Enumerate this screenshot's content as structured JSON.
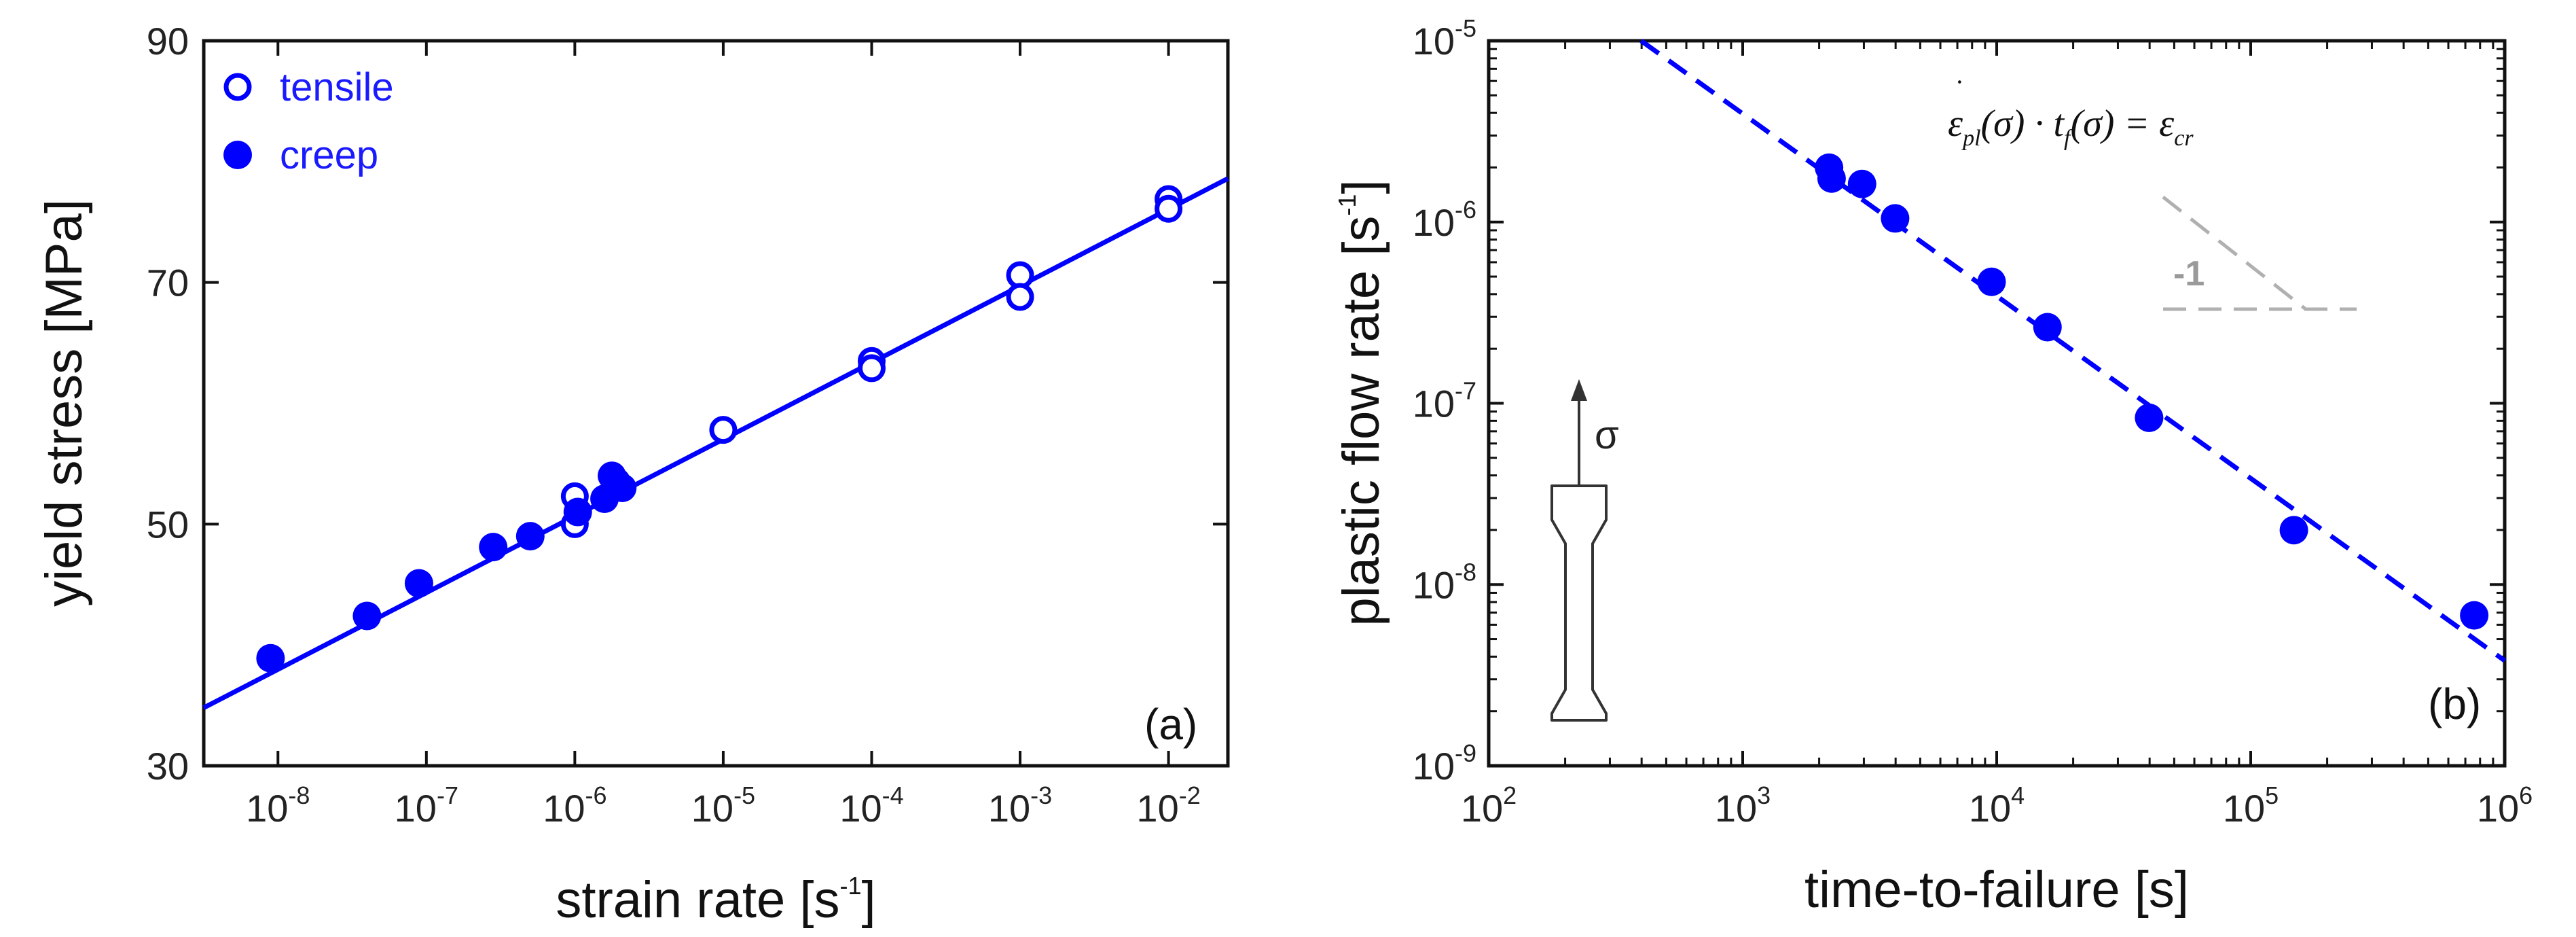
{
  "colors": {
    "series": "#0000ff",
    "axis": "#111111",
    "guide": "#b0b0b0"
  },
  "chart_data": [
    {
      "type": "scatter",
      "panel_label": "(a)",
      "xlabel_main": "strain rate [s",
      "xlabel_exp": "-1",
      "xlabel_end": "]",
      "ylabel": "yield stress [MPa]",
      "xscale": "log",
      "xlim_log10": [
        -8.5,
        -1.6
      ],
      "ylim": [
        30,
        90
      ],
      "yticks": [
        {
          "value": 30,
          "label": "30"
        },
        {
          "value": 50,
          "label": "50"
        },
        {
          "value": 70,
          "label": "70"
        },
        {
          "value": 90,
          "label": "90"
        }
      ],
      "xticks": [
        {
          "exp10": -8,
          "base": "10",
          "exp": "-8"
        },
        {
          "exp10": -7,
          "base": "10",
          "exp": "-7"
        },
        {
          "exp10": -6,
          "base": "10",
          "exp": "-6"
        },
        {
          "exp10": -5,
          "base": "10",
          "exp": "-5"
        },
        {
          "exp10": -4,
          "base": "10",
          "exp": "-4"
        },
        {
          "exp10": -3,
          "base": "10",
          "exp": "-3"
        },
        {
          "exp10": -2,
          "base": "10",
          "exp": "-2"
        }
      ],
      "legend": [
        {
          "label": "tensile",
          "marker": "open-circle"
        },
        {
          "label": "creep",
          "marker": "filled-circle"
        }
      ],
      "series": [
        {
          "name": "tensile",
          "marker": "open",
          "points": [
            {
              "log10x": -6.0,
              "y": 52.3
            },
            {
              "log10x": -6.0,
              "y": 50.0
            },
            {
              "log10x": -5.0,
              "y": 57.8
            },
            {
              "log10x": -4.0,
              "y": 63.5
            },
            {
              "log10x": -4.0,
              "y": 62.9
            },
            {
              "log10x": -3.0,
              "y": 70.6
            },
            {
              "log10x": -3.0,
              "y": 68.8
            },
            {
              "log10x": -2.0,
              "y": 76.9
            },
            {
              "log10x": -2.0,
              "y": 76.1
            }
          ]
        },
        {
          "name": "creep",
          "marker": "filled",
          "points": [
            {
              "log10x": -8.05,
              "y": 38.9
            },
            {
              "log10x": -7.4,
              "y": 42.4
            },
            {
              "log10x": -7.05,
              "y": 45.1
            },
            {
              "log10x": -6.55,
              "y": 48.1
            },
            {
              "log10x": -6.3,
              "y": 49.0
            },
            {
              "log10x": -5.98,
              "y": 51.0
            },
            {
              "log10x": -5.8,
              "y": 52.1
            },
            {
              "log10x": -5.75,
              "y": 54.0
            },
            {
              "log10x": -5.72,
              "y": 53.5
            },
            {
              "log10x": -5.68,
              "y": 53.0
            }
          ]
        }
      ],
      "fit_line": {
        "style": "solid",
        "points": [
          {
            "log10x": -8.5,
            "y": 34.8
          },
          {
            "log10x": -1.6,
            "y": 78.6
          }
        ]
      }
    },
    {
      "type": "scatter",
      "panel_label": "(b)",
      "xlabel": "time-to-failure [s]",
      "ylabel_main": "plastic flow rate [s",
      "ylabel_exp": "-1",
      "ylabel_end": "]",
      "xscale": "log",
      "yscale": "log",
      "xlim_log10": [
        2,
        6
      ],
      "ylim_log10": [
        -9,
        -5
      ],
      "xticks": [
        {
          "exp10": 2,
          "base": "10",
          "exp": "2"
        },
        {
          "exp10": 3,
          "base": "10",
          "exp": "3"
        },
        {
          "exp10": 4,
          "base": "10",
          "exp": "4"
        },
        {
          "exp10": 5,
          "base": "10",
          "exp": "5"
        },
        {
          "exp10": 6,
          "base": "10",
          "exp": "6"
        }
      ],
      "yticks": [
        {
          "exp10": -9,
          "base": "10",
          "exp": "-9"
        },
        {
          "exp10": -8,
          "base": "10",
          "exp": "-8"
        },
        {
          "exp10": -7,
          "base": "10",
          "exp": "-7"
        },
        {
          "exp10": -6,
          "base": "10",
          "exp": "-6"
        },
        {
          "exp10": -5,
          "base": "10",
          "exp": "-5"
        }
      ],
      "series": [
        {
          "name": "creep",
          "marker": "filled",
          "points": [
            {
              "log10x": 3.34,
              "log10y": -5.7
            },
            {
              "log10x": 3.35,
              "log10y": -5.76
            },
            {
              "log10x": 3.47,
              "log10y": -5.79
            },
            {
              "log10x": 3.6,
              "log10y": -5.98
            },
            {
              "log10x": 3.98,
              "log10y": -6.33
            },
            {
              "log10x": 4.2,
              "log10y": -6.58
            },
            {
              "log10x": 4.6,
              "log10y": -7.08
            },
            {
              "log10x": 5.17,
              "log10y": -7.7
            },
            {
              "log10x": 5.88,
              "log10y": -8.17
            }
          ]
        }
      ],
      "fit_line": {
        "style": "dashed",
        "points": [
          {
            "log10x": 2.6,
            "log10y": -5.0
          },
          {
            "log10x": 6.0,
            "log10y": -8.42
          }
        ]
      },
      "slope_label": "-1",
      "formula": {
        "eps": "ε",
        "eps_sub": "pl",
        "arg1": "(σ) · t",
        "t_sub": "f",
        "arg2": "(σ) = ε",
        "eps2_sub": "cr"
      },
      "specimen_label": "σ"
    }
  ]
}
